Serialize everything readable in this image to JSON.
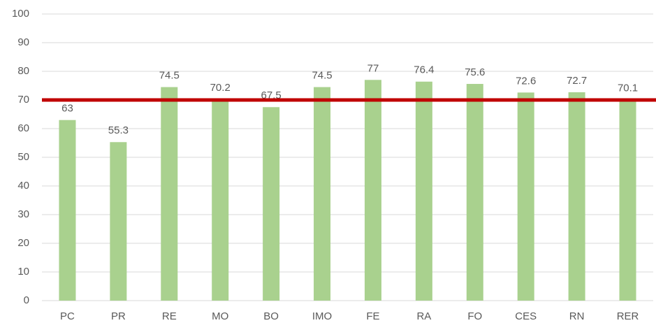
{
  "chart_data": {
    "type": "bar",
    "categories": [
      "PC",
      "PR",
      "RE",
      "MO",
      "BO",
      "IMO",
      "FE",
      "RA",
      "FO",
      "CES",
      "RN",
      "RER"
    ],
    "values": [
      63,
      55.3,
      74.5,
      70.2,
      67.5,
      74.5,
      77,
      76.4,
      75.6,
      72.6,
      72.7,
      70.1
    ],
    "color": "#a9d18e",
    "ylim": [
      0,
      100
    ],
    "yticks": [
      0,
      10,
      20,
      30,
      40,
      50,
      60,
      70,
      80,
      90,
      100
    ],
    "grid": true,
    "reference_line": {
      "value": 70,
      "color": "#c00000"
    }
  }
}
